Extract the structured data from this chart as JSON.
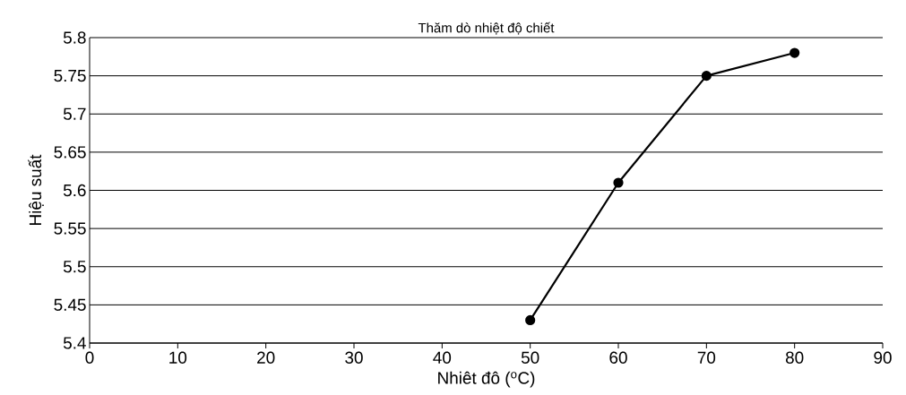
{
  "chart_data": {
    "type": "line",
    "title": "Thăm dò nhiệt độ chiết",
    "xlabel": "Nhiêt đô ($^{o}$C)",
    "ylabel": "Hiệu suất",
    "x": [
      50,
      60,
      70,
      80
    ],
    "series": [
      {
        "color": "#000000",
        "values": [
          5.43,
          5.61,
          5.75,
          5.78
        ]
      }
    ],
    "xlim": [
      0,
      90
    ],
    "xticks": [
      0,
      10,
      20,
      30,
      40,
      50,
      60,
      70,
      80,
      90
    ],
    "ylim": [
      5.4,
      5.8
    ],
    "yticks": [
      5.4,
      5.45,
      5.5,
      5.55,
      5.6,
      5.65,
      5.7,
      5.75,
      5.8
    ],
    "grid": "y",
    "marker": "circle",
    "line_style": "solid"
  }
}
